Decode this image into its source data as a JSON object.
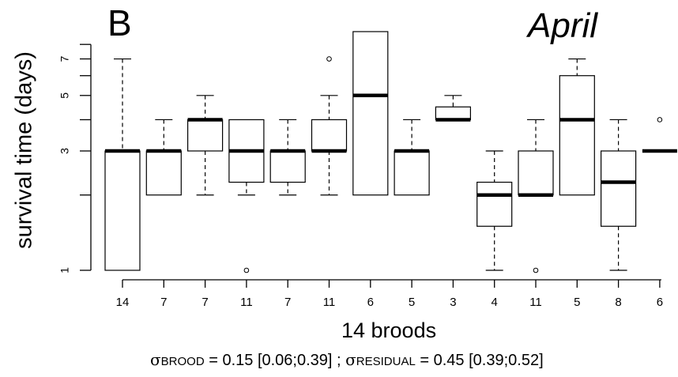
{
  "panel_label": "B",
  "month": "April",
  "footer": {
    "sigma": "σ",
    "brood_sub": "BROOD",
    "brood_text": " = 0.15 [0.06;0.39]  ;  ",
    "residual_sub": "RESIDUAL",
    "residual_text": " = 0.45 [0.39;0.52]"
  },
  "chart_data": {
    "type": "boxplot",
    "xlabel": "14 broods",
    "ylabel": "survival time (days)",
    "y_scale": "log",
    "yticks": [
      1,
      3,
      5,
      7
    ],
    "yticks_unlabeled": [
      2,
      4,
      6,
      8
    ],
    "categories": [
      "14",
      "7",
      "7",
      "11",
      "7",
      "11",
      "6",
      "5",
      "3",
      "4",
      "11",
      "5",
      "8",
      "6"
    ],
    "boxes": [
      {
        "label": "14",
        "whisker_low": 1,
        "q1": 1,
        "median": 3,
        "q3": 3,
        "whisker_high": 7,
        "outliers": []
      },
      {
        "label": "7",
        "whisker_low": 2,
        "q1": 2,
        "median": 3,
        "q3": 3,
        "whisker_high": 4,
        "outliers": []
      },
      {
        "label": "7",
        "whisker_low": 2,
        "q1": 3,
        "median": 4,
        "q3": 4,
        "whisker_high": 5,
        "outliers": []
      },
      {
        "label": "11",
        "whisker_low": 2,
        "q1": 2.25,
        "median": 3,
        "q3": 4,
        "whisker_high": 4,
        "outliers": [
          1
        ]
      },
      {
        "label": "7",
        "whisker_low": 2,
        "q1": 2.25,
        "median": 3,
        "q3": 3,
        "whisker_high": 4,
        "outliers": []
      },
      {
        "label": "11",
        "whisker_low": 2,
        "q1": 3,
        "median": 3,
        "q3": 4,
        "whisker_high": 5,
        "outliers": [
          7
        ]
      },
      {
        "label": "6",
        "whisker_low": 2,
        "q1": 2,
        "median": 5,
        "q3": 9,
        "whisker_high": 9,
        "outliers": []
      },
      {
        "label": "5",
        "whisker_low": 2,
        "q1": 2,
        "median": 3,
        "q3": 3,
        "whisker_high": 4,
        "outliers": []
      },
      {
        "label": "3",
        "whisker_low": 4,
        "q1": 4,
        "median": 4,
        "q3": 4.5,
        "whisker_high": 5,
        "outliers": []
      },
      {
        "label": "4",
        "whisker_low": 1,
        "q1": 1.5,
        "median": 2,
        "q3": 2.25,
        "whisker_high": 3,
        "outliers": []
      },
      {
        "label": "11",
        "whisker_low": 2,
        "q1": 2,
        "median": 2,
        "q3": 3,
        "whisker_high": 4,
        "outliers": [
          1
        ]
      },
      {
        "label": "5",
        "whisker_low": 2,
        "q1": 2,
        "median": 4,
        "q3": 6,
        "whisker_high": 7,
        "outliers": []
      },
      {
        "label": "8",
        "whisker_low": 1,
        "q1": 1.5,
        "median": 2.25,
        "q3": 3,
        "whisker_high": 4,
        "outliers": []
      },
      {
        "label": "6",
        "whisker_low": 3,
        "q1": 3,
        "median": 3,
        "q3": 3,
        "whisker_high": 3,
        "outliers": [
          4
        ]
      }
    ]
  }
}
